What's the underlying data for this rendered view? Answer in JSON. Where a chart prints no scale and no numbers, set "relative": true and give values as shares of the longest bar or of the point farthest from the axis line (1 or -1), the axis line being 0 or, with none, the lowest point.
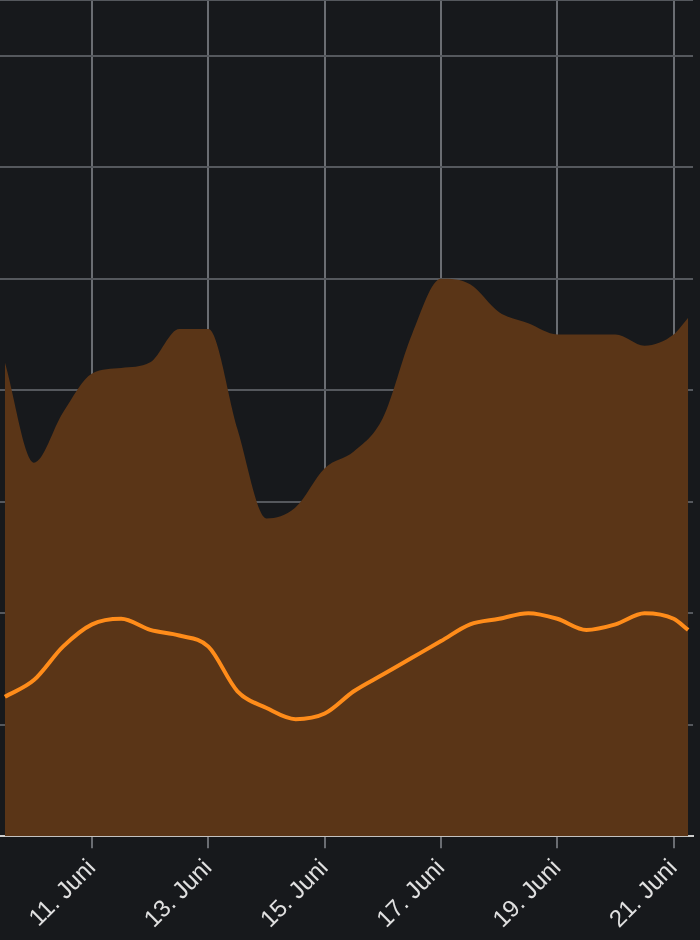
{
  "chart_data": {
    "type": "area",
    "relative": true,
    "grid": true,
    "x": [
      "--06-09T12:00",
      "--06-10",
      "--06-10T12:00",
      "--06-11",
      "--06-11T12:00",
      "--06-12",
      "--06-12T12:00",
      "--06-13",
      "--06-13T12:00",
      "--06-14",
      "--06-14T12:00",
      "--06-15",
      "--06-15T12:00",
      "--06-16",
      "--06-16T12:00",
      "--06-17",
      "--06-17T12:00",
      "--06-18",
      "--06-18T12:00",
      "--06-19",
      "--06-19T12:00",
      "--06-20",
      "--06-20T12:00",
      "--06-21",
      "--06-21T06:00"
    ],
    "xlim": [
      "--06-09T10:00",
      "--06-21T08:00"
    ],
    "xticks": [
      {
        "value": "--06-11",
        "label": "11. Juni"
      },
      {
        "value": "--06-13",
        "label": "13. Juni"
      },
      {
        "value": "--06-15",
        "label": "15. Juni"
      },
      {
        "value": "--06-17",
        "label": "17. Juni"
      },
      {
        "value": "--06-19",
        "label": "19. Juni"
      },
      {
        "value": "--06-21",
        "label": "21. Juni"
      }
    ],
    "series": [
      {
        "type": "area",
        "color": "#5a3517",
        "values": [
          0.85,
          0.67,
          0.76,
          0.83,
          0.84,
          0.85,
          0.91,
          0.91,
          0.73,
          0.57,
          0.59,
          0.66,
          0.69,
          0.75,
          0.9,
          1,
          0.99,
          0.94,
          0.92,
          0.9,
          0.9,
          0.9,
          0.88,
          0.9,
          0.93
        ]
      },
      {
        "type": "line",
        "color": "#ff8c1a",
        "values": [
          0.25,
          0.28,
          0.34,
          0.38,
          0.39,
          0.37,
          0.36,
          0.34,
          0.26,
          0.23,
          0.21,
          0.22,
          0.26,
          0.29,
          0.32,
          0.35,
          0.38,
          0.39,
          0.4,
          0.39,
          0.37,
          0.38,
          0.4,
          0.39,
          0.37
        ]
      }
    ]
  }
}
